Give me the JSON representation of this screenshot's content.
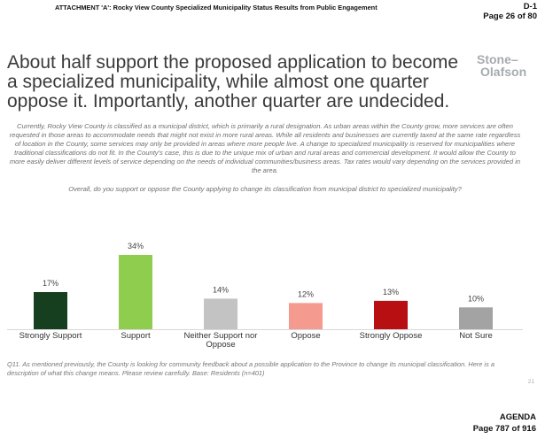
{
  "header": {
    "attachment": "ATTACHMENT 'A': Rocky View County Specialized Municipality Status Results from Public Engagement",
    "doc_id": "D-1",
    "page": "Page 26 of 80"
  },
  "slide": {
    "headline": "About half support the proposed application to become a specialized municipality, while almost one quarter oppose it. Importantly, another quarter are undecided.",
    "logo_line1": "Stone–",
    "logo_line2": "Olafson",
    "description": "Currently, Rocky View County is classified as a municipal district, which is primarily a rural designation. As urban areas within the County grow, more services are often requested in those areas to accommodate needs that might not exist in more rural areas. While all residents and businesses are currently taxed at the same rate regardless of location in the County, some services may only be provided in areas where more people live. A change to specialized municipality is reserved for municipalities where traditional classifications do not fit. In the County's case, this is due to the unique mix of urban and rural areas and commercial development. It would allow the County to more easily deliver different levels of service depending on the needs of individual communities/business areas. Tax rates would vary depending on the services provided in the area.",
    "question": "Overall, do you support or oppose the County applying to change its classification from municipal district to specialized municipality?",
    "footnote": "Q11. As mentioned previously, the County is looking for community feedback about a possible application to the Province to change its municipal classification. Here is a description of what this change means. Please review carefully.  Base: Residents (n=401)",
    "slide_number": "21"
  },
  "footer": {
    "agenda": "AGENDA",
    "page": "Page 787 of 916"
  },
  "chart_data": {
    "type": "bar",
    "categories": [
      "Strongly Support",
      "Support",
      "Neither Support nor Oppose",
      "Oppose",
      "Strongly Oppose",
      "Not Sure"
    ],
    "category_lines": [
      [
        "Strongly Support"
      ],
      [
        "Support"
      ],
      [
        "Neither Support nor",
        "Oppose"
      ],
      [
        "Oppose"
      ],
      [
        "Strongly Oppose"
      ],
      [
        "Not Sure"
      ]
    ],
    "values": [
      17,
      34,
      14,
      12,
      13,
      10
    ],
    "value_labels": [
      "17%",
      "34%",
      "14%",
      "12%",
      "13%",
      "10%"
    ],
    "colors": [
      "#163f1f",
      "#8fcd4f",
      "#c3c3c3",
      "#f59a8f",
      "#b70f12",
      "#a3a3a3"
    ],
    "title": "",
    "xlabel": "",
    "ylabel": "",
    "ylim": [
      0,
      40
    ],
    "grid": false,
    "legend": "none"
  }
}
